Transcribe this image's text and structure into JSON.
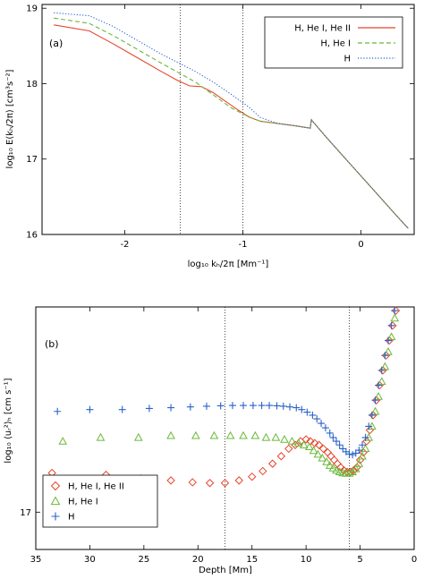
{
  "chart_data": [
    {
      "type": "line",
      "panel_label": "(a)",
      "xlabel": "log₁₀ kₕ/2π [Mm⁻¹]",
      "ylabel": "log₁₀ E(kₕ/2π) [cm³s⁻²]",
      "xlim": [
        -2.7,
        0.45
      ],
      "ylim": [
        16.0,
        19.05
      ],
      "xticks": [
        -2,
        -1,
        0
      ],
      "xtick_labels": [
        "-2",
        "-1",
        "0"
      ],
      "yticks": [
        16,
        17,
        18,
        19
      ],
      "ytick_labels": [
        "16",
        "17",
        "18",
        "19"
      ],
      "vlines": [
        -1.53,
        -1.0
      ],
      "legend_position": "top-right",
      "series": [
        {
          "name": "H, He I, He II",
          "color": "#e8452c",
          "style": "solid",
          "x": [
            -2.6,
            -2.3,
            -2.1,
            -1.9,
            -1.7,
            -1.55,
            -1.45,
            -1.35,
            -1.25,
            -1.15,
            -1.05,
            -0.95,
            -0.85,
            -0.7,
            -0.55,
            -0.43,
            -0.42,
            -0.3,
            -0.1,
            0.1,
            0.3,
            0.4
          ],
          "y": [
            18.78,
            18.7,
            18.53,
            18.35,
            18.17,
            18.04,
            17.97,
            17.96,
            17.88,
            17.77,
            17.66,
            17.56,
            17.5,
            17.47,
            17.44,
            17.41,
            17.52,
            17.3,
            16.95,
            16.6,
            16.25,
            16.08
          ]
        },
        {
          "name": "H, He I",
          "color": "#6bb83a",
          "style": "dashed",
          "x": [
            -2.6,
            -2.3,
            -2.1,
            -1.9,
            -1.7,
            -1.55,
            -1.4,
            -1.25,
            -1.1,
            -0.95,
            -0.85,
            -0.7,
            -0.55,
            -0.43,
            -0.42,
            -0.3,
            -0.1,
            0.1,
            0.3,
            0.4
          ],
          "y": [
            18.87,
            18.8,
            18.64,
            18.46,
            18.28,
            18.15,
            18.02,
            17.85,
            17.68,
            17.56,
            17.5,
            17.47,
            17.44,
            17.41,
            17.52,
            17.3,
            16.95,
            16.6,
            16.25,
            16.08
          ]
        },
        {
          "name": "H",
          "color": "#2b62c9",
          "style": "dotted",
          "x": [
            -2.6,
            -2.3,
            -2.1,
            -1.9,
            -1.7,
            -1.55,
            -1.4,
            -1.25,
            -1.1,
            -0.95,
            -0.85,
            -0.7,
            -0.55,
            -0.43,
            -0.42,
            -0.3,
            -0.1,
            0.1,
            0.3,
            0.4
          ],
          "y": [
            18.94,
            18.9,
            18.76,
            18.58,
            18.4,
            18.28,
            18.16,
            18.02,
            17.86,
            17.69,
            17.55,
            17.47,
            17.44,
            17.41,
            17.52,
            17.3,
            16.95,
            16.6,
            16.25,
            16.08
          ]
        }
      ]
    },
    {
      "type": "scatter",
      "panel_label": "(b)",
      "xlabel": "Depth [Mm]",
      "ylabel": "log₁₀ ⟨uᵣ²⟩ₕ [cm s⁻¹]",
      "xlim": [
        35,
        0
      ],
      "ylim": [
        16.9,
        17.55
      ],
      "xticks": [
        35,
        30,
        25,
        20,
        15,
        10,
        5,
        0
      ],
      "xtick_labels": [
        "35",
        "30",
        "25",
        "20",
        "15",
        "10",
        "5",
        "0"
      ],
      "yticks": [
        17
      ],
      "ytick_labels": [
        "17"
      ],
      "vlines": [
        17.5,
        6.0
      ],
      "legend_position": "bottom-left",
      "series": [
        {
          "name": "H, He I, He II",
          "color": "#e8452c",
          "marker": "diamond",
          "x": [
            33.5,
            28.5,
            25.3,
            22.5,
            20.5,
            18.9,
            17.5,
            16.2,
            15.0,
            14.0,
            13.1,
            12.3,
            11.6,
            11.0,
            10.5,
            10.0,
            9.6,
            9.2,
            8.8,
            8.4,
            8.0,
            7.7,
            7.4,
            7.1,
            6.8,
            6.5,
            6.2,
            5.9,
            5.6,
            5.3,
            5.0,
            4.7,
            4.4,
            4.1,
            3.8,
            3.5,
            3.2,
            2.9,
            2.6,
            2.3,
            2.0,
            1.7
          ],
          "y": [
            17.105,
            17.1,
            17.09,
            17.085,
            17.08,
            17.078,
            17.078,
            17.085,
            17.095,
            17.11,
            17.13,
            17.15,
            17.17,
            17.18,
            17.19,
            17.195,
            17.19,
            17.185,
            17.18,
            17.17,
            17.16,
            17.15,
            17.14,
            17.13,
            17.12,
            17.112,
            17.108,
            17.108,
            17.112,
            17.12,
            17.14,
            17.16,
            17.19,
            17.22,
            17.26,
            17.3,
            17.34,
            17.38,
            17.42,
            17.46,
            17.5,
            17.54
          ]
        },
        {
          "name": "H, He I",
          "color": "#6bb83a",
          "marker": "triangle",
          "x": [
            32.5,
            29.0,
            25.5,
            22.5,
            20.2,
            18.5,
            17.0,
            15.8,
            14.7,
            13.7,
            12.8,
            12.0,
            11.3,
            10.7,
            10.2,
            9.7,
            9.3,
            8.9,
            8.5,
            8.1,
            7.8,
            7.5,
            7.2,
            6.9,
            6.6,
            6.3,
            6.0,
            5.7,
            5.4,
            5.1,
            4.8,
            4.5,
            4.2,
            3.9,
            3.6,
            3.3,
            3.0,
            2.7,
            2.4,
            2.1,
            1.8
          ],
          "y": [
            17.19,
            17.2,
            17.2,
            17.205,
            17.205,
            17.205,
            17.205,
            17.205,
            17.205,
            17.2,
            17.2,
            17.195,
            17.19,
            17.185,
            17.18,
            17.175,
            17.165,
            17.155,
            17.145,
            17.135,
            17.125,
            17.118,
            17.112,
            17.108,
            17.105,
            17.104,
            17.104,
            17.108,
            17.116,
            17.13,
            17.15,
            17.17,
            17.2,
            17.23,
            17.27,
            17.31,
            17.35,
            17.39,
            17.43,
            17.47,
            17.52
          ]
        },
        {
          "name": "H",
          "color": "#2b62c9",
          "marker": "plus",
          "x": [
            33.0,
            30.0,
            27.0,
            24.5,
            22.5,
            20.7,
            19.2,
            17.9,
            16.8,
            15.8,
            14.9,
            14.1,
            13.4,
            12.7,
            12.1,
            11.5,
            10.9,
            10.4,
            9.9,
            9.4,
            9.0,
            8.6,
            8.2,
            7.8,
            7.5,
            7.2,
            6.9,
            6.6,
            6.3,
            6.0,
            5.7,
            5.4,
            5.1,
            4.8,
            4.5,
            4.2,
            3.9,
            3.6,
            3.3,
            3.0,
            2.7,
            2.4,
            2.1,
            1.8
          ],
          "y": [
            17.27,
            17.275,
            17.275,
            17.278,
            17.28,
            17.282,
            17.284,
            17.285,
            17.286,
            17.286,
            17.286,
            17.286,
            17.286,
            17.285,
            17.284,
            17.282,
            17.28,
            17.275,
            17.268,
            17.26,
            17.25,
            17.238,
            17.226,
            17.212,
            17.2,
            17.19,
            17.18,
            17.17,
            17.162,
            17.156,
            17.154,
            17.158,
            17.166,
            17.18,
            17.2,
            17.23,
            17.26,
            17.3,
            17.34,
            17.38,
            17.42,
            17.46,
            17.5,
            17.54
          ]
        }
      ]
    }
  ]
}
